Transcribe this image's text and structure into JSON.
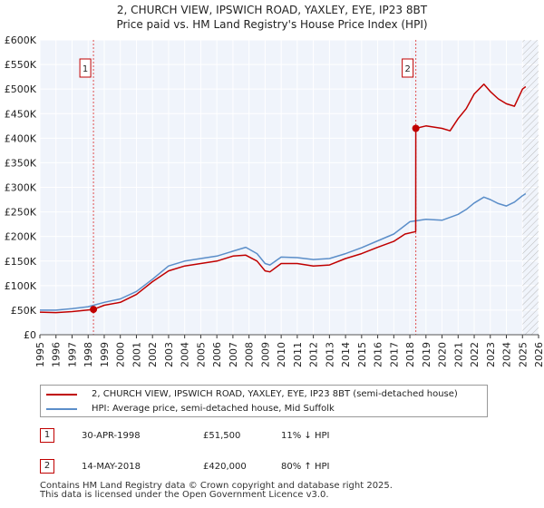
{
  "chart_data": {
    "type": "line",
    "title": "2, CHURCH VIEW, IPSWICH ROAD, YAXLEY, EYE, IP23 8BT",
    "subtitle": "Price paid vs. HM Land Registry's House Price Index (HPI)",
    "xlim": [
      1995,
      2026
    ],
    "ylim": [
      0,
      600000
    ],
    "x_ticks": [
      1995,
      1996,
      1997,
      1998,
      1999,
      2000,
      2001,
      2002,
      2003,
      2004,
      2005,
      2006,
      2007,
      2008,
      2009,
      2010,
      2011,
      2012,
      2013,
      2014,
      2015,
      2016,
      2017,
      2018,
      2019,
      2020,
      2021,
      2022,
      2023,
      2024,
      2025,
      2026
    ],
    "y_ticks": [
      0,
      50000,
      100000,
      150000,
      200000,
      250000,
      300000,
      350000,
      400000,
      450000,
      500000,
      550000,
      600000
    ],
    "y_tick_labels": [
      "£0",
      "£50K",
      "£100K",
      "£150K",
      "£200K",
      "£250K",
      "£300K",
      "£350K",
      "£400K",
      "£450K",
      "£500K",
      "£550K",
      "£600K"
    ],
    "grid": true,
    "series": [
      {
        "name": "2, CHURCH VIEW, IPSWICH ROAD, YAXLEY, EYE, IP23 8BT (semi-detached house)",
        "color": "#c00000",
        "x": [
          1995.0,
          1996.0,
          1997.0,
          1998.33,
          1999.0,
          2000.0,
          2001.0,
          2002.0,
          2003.0,
          2004.0,
          2005.0,
          2006.0,
          2007.0,
          2007.8,
          2008.5,
          2009.0,
          2009.3,
          2010.0,
          2011.0,
          2012.0,
          2013.0,
          2014.0,
          2015.0,
          2016.0,
          2017.0,
          2017.7,
          2018.36,
          2018.37,
          2019.0,
          2020.0,
          2020.5,
          2021.0,
          2021.5,
          2022.0,
          2022.6,
          2023.0,
          2023.5,
          2024.0,
          2024.5,
          2025.0,
          2025.2
        ],
        "y": [
          46000,
          45000,
          47000,
          51500,
          60000,
          66000,
          82000,
          108000,
          130000,
          140000,
          145000,
          150000,
          160000,
          162000,
          150000,
          130000,
          128000,
          145000,
          145000,
          140000,
          142000,
          155000,
          165000,
          178000,
          190000,
          205000,
          210000,
          420000,
          425000,
          420000,
          415000,
          440000,
          460000,
          490000,
          510000,
          495000,
          480000,
          470000,
          465000,
          500000,
          505000
        ]
      },
      {
        "name": "HPI: Average price, semi-detached house, Mid Suffolk",
        "color": "#5b8ec9",
        "x": [
          1995.0,
          1996.0,
          1997.0,
          1998.0,
          1999.0,
          2000.0,
          2001.0,
          2002.0,
          2003.0,
          2004.0,
          2005.0,
          2006.0,
          2007.0,
          2007.8,
          2008.5,
          2009.0,
          2009.3,
          2010.0,
          2011.0,
          2012.0,
          2013.0,
          2014.0,
          2015.0,
          2016.0,
          2017.0,
          2018.0,
          2019.0,
          2020.0,
          2021.0,
          2021.5,
          2022.0,
          2022.6,
          2023.0,
          2023.5,
          2024.0,
          2024.5,
          2025.0,
          2025.2
        ],
        "y": [
          50000,
          50000,
          53000,
          57000,
          66000,
          73000,
          88000,
          113000,
          140000,
          150000,
          155000,
          160000,
          170000,
          178000,
          165000,
          145000,
          142000,
          158000,
          157000,
          153000,
          155000,
          165000,
          177000,
          191000,
          205000,
          230000,
          235000,
          233000,
          245000,
          255000,
          268000,
          280000,
          275000,
          267000,
          262000,
          270000,
          283000,
          287000
        ]
      }
    ],
    "annotations": [
      {
        "label": "1",
        "x": 1998.33,
        "y": 51500
      },
      {
        "label": "2",
        "x": 2018.37,
        "y": 420000
      }
    ],
    "legend_position": "bottom"
  },
  "legend": {
    "item1": "2, CHURCH VIEW, IPSWICH ROAD, YAXLEY, EYE, IP23 8BT (semi-detached house)",
    "item2": "HPI: Average price, semi-detached house, Mid Suffolk"
  },
  "transactions": [
    {
      "num": "1",
      "date": "30-APR-1998",
      "price": "£51,500",
      "hpi": "11% ↓ HPI"
    },
    {
      "num": "2",
      "date": "14-MAY-2018",
      "price": "£420,000",
      "hpi": "80% ↑ HPI"
    }
  ],
  "footer": {
    "line1": "Contains HM Land Registry data © Crown copyright and database right 2025.",
    "line2": "This data is licensed under the Open Government Licence v3.0."
  }
}
